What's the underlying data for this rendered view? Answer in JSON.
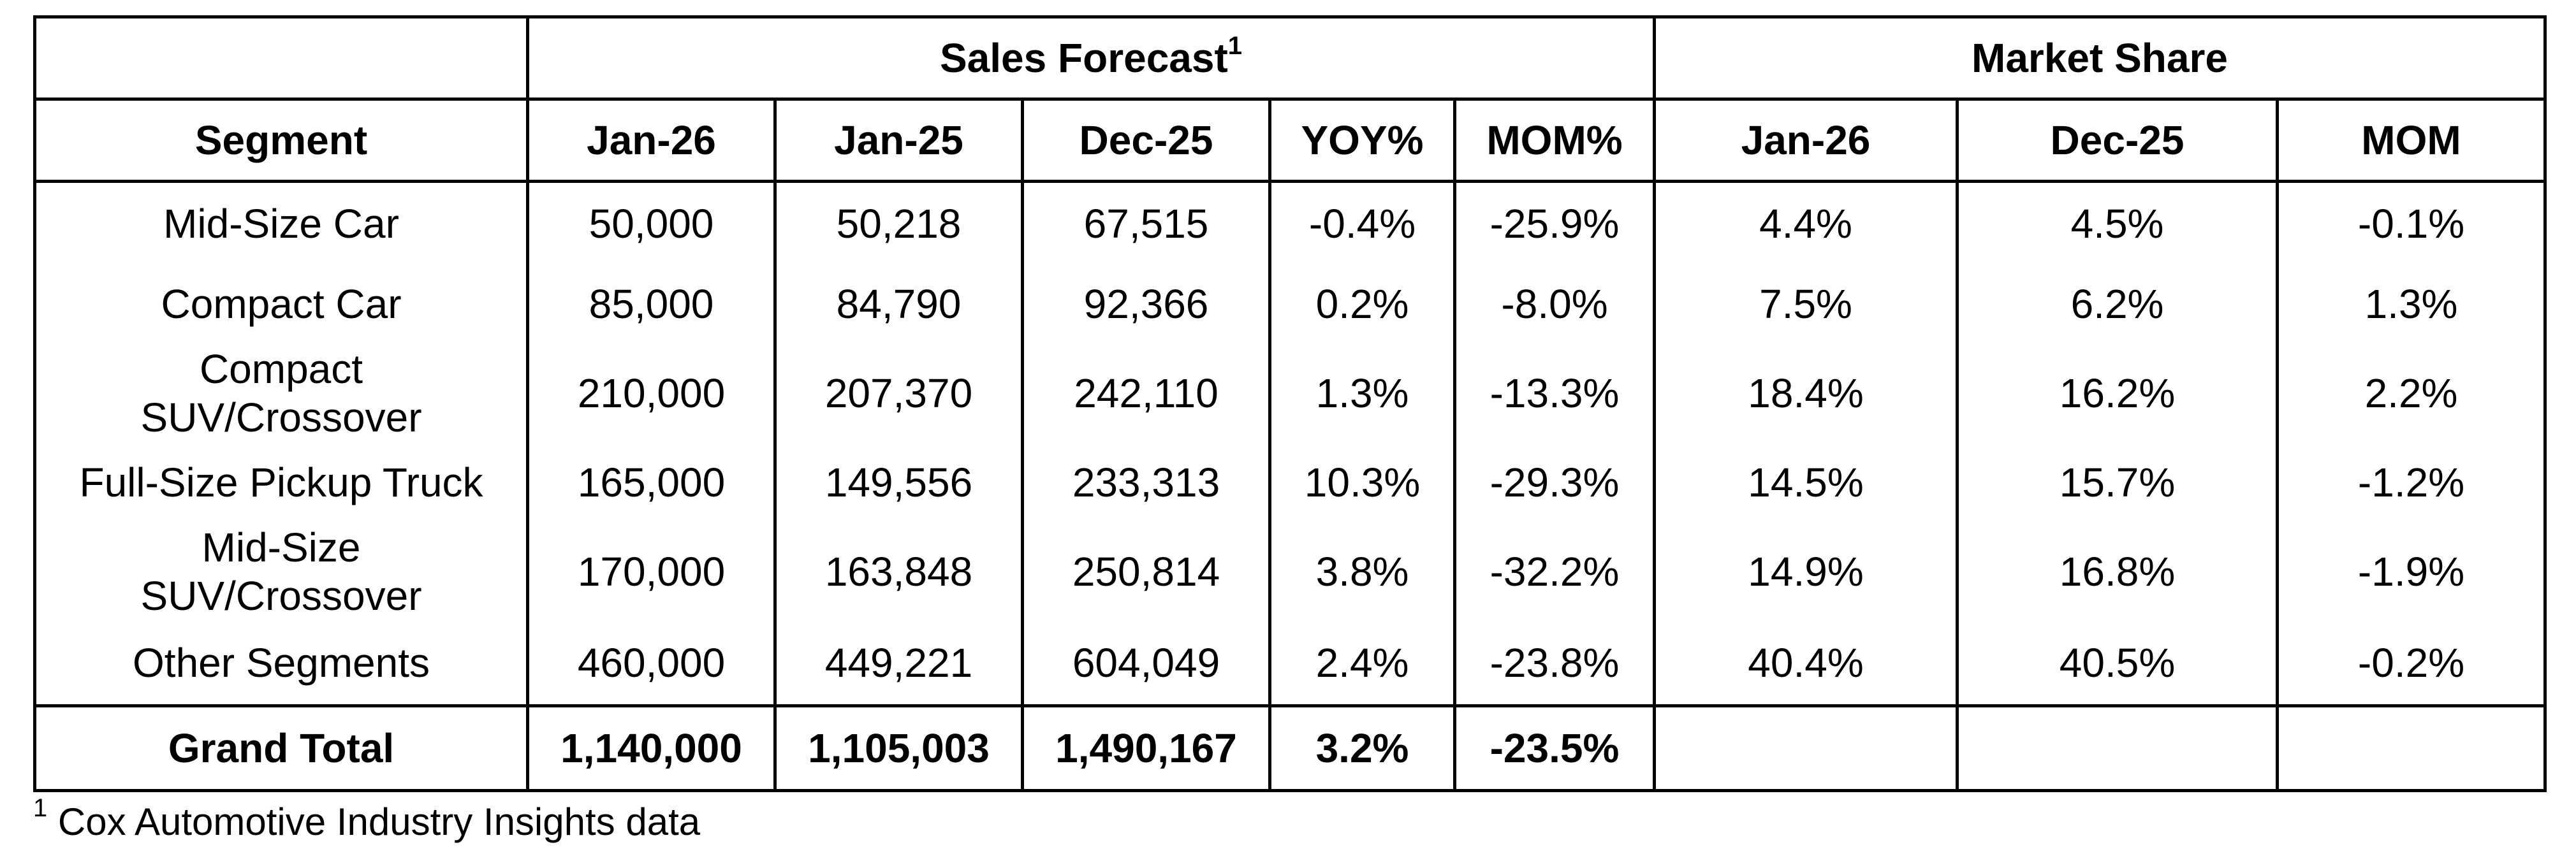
{
  "header_groups": {
    "sales_forecast": "Sales Forecast",
    "sales_forecast_footnote_mark": "1",
    "market_share": "Market Share"
  },
  "columns": [
    "Segment",
    "Jan-26",
    "Jan-25",
    "Dec-25",
    "YOY%",
    "MOM%",
    "Jan-26",
    "Dec-25",
    "MOM"
  ],
  "rows": [
    {
      "segment": "Mid-Size Car",
      "jan26": "50,000",
      "jan25": "50,218",
      "dec25": "67,515",
      "yoy": "-0.4%",
      "mom": "-25.9%",
      "ms_jan26": "4.4%",
      "ms_dec25": "4.5%",
      "ms_mom": "-0.1%"
    },
    {
      "segment": "Compact Car",
      "jan26": "85,000",
      "jan25": "84,790",
      "dec25": "92,366",
      "yoy": "0.2%",
      "mom": "-8.0%",
      "ms_jan26": "7.5%",
      "ms_dec25": "6.2%",
      "ms_mom": "1.3%"
    },
    {
      "segment_line1": "Compact",
      "segment_line2": "SUV/Crossover",
      "jan26": "210,000",
      "jan25": "207,370",
      "dec25": "242,110",
      "yoy": "1.3%",
      "mom": "-13.3%",
      "ms_jan26": "18.4%",
      "ms_dec25": "16.2%",
      "ms_mom": "2.2%"
    },
    {
      "segment": "Full-Size Pickup Truck",
      "jan26": "165,000",
      "jan25": "149,556",
      "dec25": "233,313",
      "yoy": "10.3%",
      "mom": "-29.3%",
      "ms_jan26": "14.5%",
      "ms_dec25": "15.7%",
      "ms_mom": "-1.2%"
    },
    {
      "segment_line1": "Mid-Size",
      "segment_line2": "SUV/Crossover",
      "jan26": "170,000",
      "jan25": "163,848",
      "dec25": "250,814",
      "yoy": "3.8%",
      "mom": "-32.2%",
      "ms_jan26": "14.9%",
      "ms_dec25": "16.8%",
      "ms_mom": "-1.9%"
    },
    {
      "segment": "Other Segments",
      "jan26": "460,000",
      "jan25": "449,221",
      "dec25": "604,049",
      "yoy": "2.4%",
      "mom": "-23.8%",
      "ms_jan26": "40.4%",
      "ms_dec25": "40.5%",
      "ms_mom": "-0.2%"
    }
  ],
  "total": {
    "segment": "Grand Total",
    "jan26": "1,140,000",
    "jan25": "1,105,003",
    "dec25": "1,490,167",
    "yoy": "3.2%",
    "mom": "-23.5%"
  },
  "footnote": {
    "mark": "1",
    "text": "Cox Automotive Industry Insights data"
  }
}
